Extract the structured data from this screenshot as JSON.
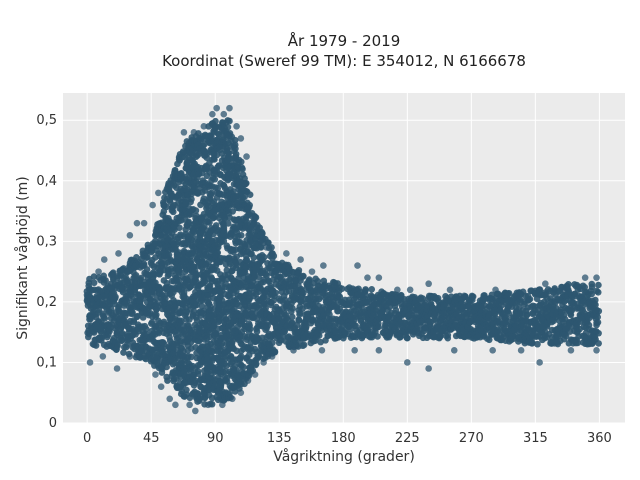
{
  "chart_data": {
    "type": "scatter",
    "title": "År 1979 - 2019",
    "subtitle": "Koordinat (Sweref 99 TM): E 354012, N 6166678",
    "xlabel": "Vågriktning (grader)",
    "ylabel": "Signifikant våghöjd (m)",
    "xlim": [
      -17,
      378
    ],
    "ylim": [
      0,
      0.545
    ],
    "x_ticks": [
      0,
      45,
      90,
      135,
      180,
      225,
      270,
      315,
      360
    ],
    "x_tick_labels": [
      "0",
      "45",
      "90",
      "135",
      "180",
      "225",
      "270",
      "315",
      "360"
    ],
    "y_ticks": [
      0,
      0.1,
      0.2,
      0.3,
      0.4,
      0.5
    ],
    "y_tick_labels": [
      "0",
      "0,1",
      "0,2",
      "0,3",
      "0,4",
      "0,5"
    ],
    "grid": true,
    "legend": "none",
    "background": "#ebebeb",
    "marker_color": "#2e5670",
    "dense_band": [
      {
        "x": 0,
        "ymin": 0.13,
        "ymax": 0.24
      },
      {
        "x": 20,
        "ymin": 0.12,
        "ymax": 0.25
      },
      {
        "x": 45,
        "ymin": 0.1,
        "ymax": 0.3
      },
      {
        "x": 60,
        "ymin": 0.06,
        "ymax": 0.42
      },
      {
        "x": 70,
        "ymin": 0.04,
        "ymax": 0.47
      },
      {
        "x": 80,
        "ymin": 0.03,
        "ymax": 0.48
      },
      {
        "x": 90,
        "ymin": 0.03,
        "ymax": 0.5
      },
      {
        "x": 100,
        "ymin": 0.04,
        "ymax": 0.5
      },
      {
        "x": 110,
        "ymin": 0.06,
        "ymax": 0.42
      },
      {
        "x": 120,
        "ymin": 0.1,
        "ymax": 0.33
      },
      {
        "x": 135,
        "ymin": 0.12,
        "ymax": 0.27
      },
      {
        "x": 160,
        "ymin": 0.13,
        "ymax": 0.24
      },
      {
        "x": 180,
        "ymin": 0.14,
        "ymax": 0.23
      },
      {
        "x": 225,
        "ymin": 0.14,
        "ymax": 0.21
      },
      {
        "x": 270,
        "ymin": 0.14,
        "ymax": 0.21
      },
      {
        "x": 315,
        "ymin": 0.13,
        "ymax": 0.22
      },
      {
        "x": 340,
        "ymin": 0.13,
        "ymax": 0.23
      },
      {
        "x": 360,
        "ymin": 0.13,
        "ymax": 0.23
      }
    ],
    "outliers": [
      [
        91,
        0.52
      ],
      [
        100,
        0.52
      ],
      [
        96,
        0.51
      ],
      [
        88,
        0.51
      ],
      [
        68,
        0.48
      ],
      [
        75,
        0.48
      ],
      [
        82,
        0.49
      ],
      [
        105,
        0.49
      ],
      [
        108,
        0.47
      ],
      [
        112,
        0.44
      ],
      [
        50,
        0.38
      ],
      [
        46,
        0.36
      ],
      [
        40,
        0.33
      ],
      [
        35,
        0.33
      ],
      [
        30,
        0.31
      ],
      [
        22,
        0.28
      ],
      [
        12,
        0.27
      ],
      [
        8,
        0.25
      ],
      [
        118,
        0.34
      ],
      [
        122,
        0.3
      ],
      [
        126,
        0.29
      ],
      [
        130,
        0.28
      ],
      [
        140,
        0.28
      ],
      [
        150,
        0.27
      ],
      [
        158,
        0.25
      ],
      [
        166,
        0.26
      ],
      [
        190,
        0.26
      ],
      [
        197,
        0.24
      ],
      [
        205,
        0.24
      ],
      [
        218,
        0.22
      ],
      [
        227,
        0.22
      ],
      [
        240,
        0.23
      ],
      [
        255,
        0.22
      ],
      [
        265,
        0.21
      ],
      [
        287,
        0.22
      ],
      [
        302,
        0.21
      ],
      [
        322,
        0.23
      ],
      [
        335,
        0.22
      ],
      [
        350,
        0.24
      ],
      [
        358,
        0.24
      ],
      [
        2,
        0.1
      ],
      [
        11,
        0.11
      ],
      [
        21,
        0.09
      ],
      [
        30,
        0.11
      ],
      [
        48,
        0.08
      ],
      [
        52,
        0.06
      ],
      [
        58,
        0.04
      ],
      [
        62,
        0.03
      ],
      [
        72,
        0.03
      ],
      [
        76,
        0.02
      ],
      [
        85,
        0.03
      ],
      [
        95,
        0.03
      ],
      [
        102,
        0.04
      ],
      [
        108,
        0.05
      ],
      [
        113,
        0.07
      ],
      [
        118,
        0.08
      ],
      [
        124,
        0.1
      ],
      [
        130,
        0.11
      ],
      [
        145,
        0.12
      ],
      [
        165,
        0.12
      ],
      [
        188,
        0.12
      ],
      [
        205,
        0.12
      ],
      [
        225,
        0.1
      ],
      [
        240,
        0.09
      ],
      [
        258,
        0.12
      ],
      [
        285,
        0.12
      ],
      [
        305,
        0.12
      ],
      [
        318,
        0.1
      ],
      [
        340,
        0.12
      ],
      [
        358,
        0.12
      ]
    ]
  }
}
